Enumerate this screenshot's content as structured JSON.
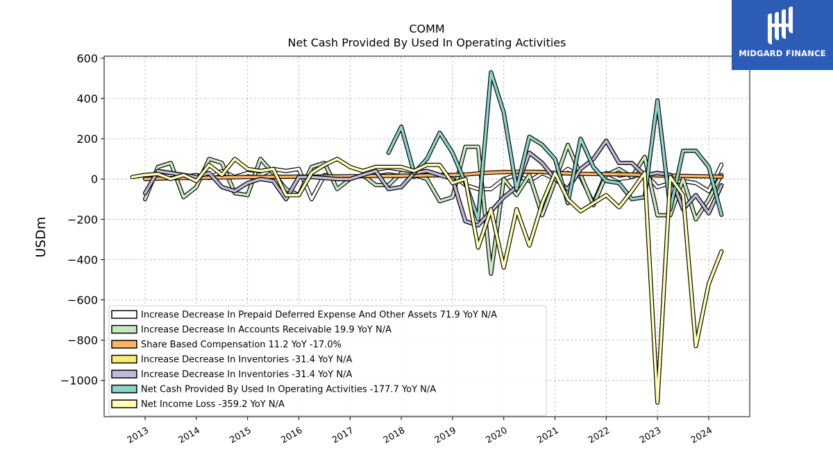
{
  "logo": {
    "text": "MIDGARD FINANCE",
    "bg_color": "#2c5cb6"
  },
  "chart_data": {
    "type": "line",
    "title": "COMM",
    "subtitle": "Net Cash Provided By Used In Operating Activities",
    "xlabel": "",
    "ylabel": "USDm",
    "ylim": [
      -1180,
      610
    ],
    "xlim": [
      2012.2,
      2024.8
    ],
    "yticks": [
      600,
      400,
      200,
      0,
      -200,
      -400,
      -600,
      -800,
      -1000
    ],
    "ytick_labels": [
      "600",
      "400",
      "200",
      "0",
      "−200",
      "−400",
      "−600",
      "−800",
      "−1000"
    ],
    "xticks": [
      2013,
      2014,
      2015,
      2016,
      2017,
      2018,
      2019,
      2020,
      2021,
      2022,
      2023,
      2024
    ],
    "xtick_labels": [
      "2013",
      "2014",
      "2015",
      "2016",
      "2017",
      "2018",
      "2019",
      "2020",
      "2021",
      "2022",
      "2023",
      "2024"
    ],
    "grid": true,
    "legend_position": "lower-left",
    "series": [
      {
        "name": "Increase Decrease In Prepaid Deferred Expense And Other Assets  71.9 YoY N/A",
        "color": "#ffffff",
        "x": [
          2013.0,
          2013.25,
          2013.5,
          2013.75,
          2014.0,
          2014.25,
          2014.5,
          2014.75,
          2015.0,
          2015.25,
          2015.5,
          2015.75,
          2016.0,
          2016.25,
          2016.5,
          2016.75,
          2017.0,
          2017.25,
          2017.5,
          2017.75,
          2018.0,
          2018.25,
          2018.5,
          2018.75,
          2019.0,
          2019.25,
          2019.5,
          2019.75,
          2020.0,
          2020.25,
          2020.5,
          2020.75,
          2021.0,
          2021.25,
          2021.5,
          2021.75,
          2022.0,
          2022.25,
          2022.5,
          2022.75,
          2023.0,
          2023.25,
          2023.5,
          2023.75,
          2024.0,
          2024.25
        ],
        "values": [
          10,
          30,
          20,
          10,
          20,
          5,
          40,
          10,
          30,
          20,
          50,
          40,
          50,
          -100,
          20,
          10,
          0,
          20,
          30,
          40,
          30,
          10,
          40,
          20,
          20,
          -30,
          -50,
          -50,
          0,
          20,
          -10,
          30,
          0,
          50,
          10,
          -120,
          30,
          0,
          10,
          30,
          -40,
          -20,
          -10,
          -20,
          -60,
          72
        ]
      },
      {
        "name": "Increase Decrease In Accounts Receivable  19.9 YoY N/A",
        "color": "#c7e9c0",
        "x": [
          2013.0,
          2013.25,
          2013.5,
          2013.75,
          2014.0,
          2014.25,
          2014.5,
          2014.75,
          2015.0,
          2015.25,
          2015.5,
          2015.75,
          2016.0,
          2016.25,
          2016.5,
          2016.75,
          2017.0,
          2017.25,
          2017.5,
          2017.75,
          2018.0,
          2018.25,
          2018.5,
          2018.75,
          2019.0,
          2019.25,
          2019.5,
          2019.75,
          2020.0,
          2020.25,
          2020.5,
          2020.75,
          2021.0,
          2021.25,
          2021.5,
          2021.75,
          2022.0,
          2022.25,
          2022.5,
          2022.75,
          2023.0,
          2023.25,
          2023.5,
          2023.75,
          2024.0,
          2024.25
        ],
        "values": [
          -100,
          60,
          80,
          -90,
          -40,
          100,
          80,
          -70,
          -80,
          100,
          30,
          -50,
          -80,
          60,
          80,
          -50,
          0,
          20,
          -30,
          -30,
          30,
          20,
          0,
          -110,
          -90,
          160,
          160,
          -470,
          0,
          -80,
          20,
          -180,
          -10,
          170,
          20,
          -130,
          20,
          50,
          10,
          110,
          -180,
          -180,
          0,
          -200,
          -100,
          20
        ]
      },
      {
        "name": "Share Based Compensation  11.2 YoY -17.0%",
        "color": "#fdb462",
        "x": [
          2013.0,
          2013.25,
          2013.5,
          2013.75,
          2014.0,
          2014.25,
          2014.5,
          2014.75,
          2015.0,
          2015.25,
          2015.5,
          2015.75,
          2016.0,
          2016.25,
          2016.5,
          2016.75,
          2017.0,
          2017.25,
          2017.5,
          2017.75,
          2018.0,
          2018.25,
          2018.5,
          2018.75,
          2019.0,
          2019.25,
          2019.5,
          2019.75,
          2020.0,
          2020.25,
          2020.5,
          2020.75,
          2021.0,
          2021.25,
          2021.5,
          2021.75,
          2022.0,
          2022.25,
          2022.5,
          2022.75,
          2023.0,
          2023.25,
          2023.5,
          2023.75,
          2024.0,
          2024.25
        ],
        "values": [
          0,
          2,
          4,
          5,
          6,
          7,
          8,
          9,
          10,
          10,
          11,
          11,
          12,
          12,
          13,
          13,
          14,
          14,
          15,
          15,
          16,
          17,
          18,
          19,
          20,
          22,
          28,
          32,
          34,
          36,
          36,
          35,
          30,
          28,
          26,
          25,
          24,
          23,
          22,
          20,
          18,
          17,
          15,
          14,
          13,
          11
        ]
      },
      {
        "name": "Increase Decrease In Inventories  -31.4 YoY N/A",
        "color": "#ffed6f",
        "x": [
          2013.0,
          2013.25,
          2013.5,
          2013.75,
          2014.0,
          2014.25,
          2014.5,
          2014.75,
          2015.0,
          2015.25,
          2015.5,
          2015.75,
          2016.0,
          2016.25,
          2016.5,
          2016.75,
          2017.0,
          2017.25,
          2017.5,
          2017.75,
          2018.0,
          2018.25,
          2018.5,
          2018.75,
          2019.0,
          2019.25,
          2019.5,
          2019.75,
          2020.0,
          2020.25,
          2020.5,
          2020.75,
          2021.0,
          2021.25,
          2021.5,
          2021.75,
          2022.0,
          2022.25,
          2022.5,
          2022.75,
          2023.0,
          2023.25,
          2023.5,
          2023.75,
          2024.0,
          2024.25
        ],
        "values": [
          -70,
          40,
          30,
          20,
          10,
          30,
          -40,
          -60,
          -20,
          0,
          -10,
          -100,
          10,
          10,
          5,
          0,
          0,
          20,
          40,
          -50,
          -40,
          30,
          40,
          20,
          0,
          -210,
          -230,
          -160,
          -90,
          -40,
          130,
          80,
          0,
          -50,
          50,
          100,
          190,
          80,
          80,
          20,
          30,
          20,
          -150,
          -80,
          -170,
          -31
        ]
      },
      {
        "name": "Increase Decrease In Inventories  -31.4 YoY N/A",
        "color": "#bebada",
        "x": [
          2013.0,
          2013.25,
          2013.5,
          2013.75,
          2014.0,
          2014.25,
          2014.5,
          2014.75,
          2015.0,
          2015.25,
          2015.5,
          2015.75,
          2016.0,
          2016.25,
          2016.5,
          2016.75,
          2017.0,
          2017.25,
          2017.5,
          2017.75,
          2018.0,
          2018.25,
          2018.5,
          2018.75,
          2019.0,
          2019.25,
          2019.5,
          2019.75,
          2020.0,
          2020.25,
          2020.5,
          2020.75,
          2021.0,
          2021.25,
          2021.5,
          2021.75,
          2022.0,
          2022.25,
          2022.5,
          2022.75,
          2023.0,
          2023.25,
          2023.5,
          2023.75,
          2024.0,
          2024.25
        ],
        "values": [
          -70,
          40,
          30,
          20,
          10,
          30,
          -40,
          -60,
          -20,
          0,
          -10,
          -100,
          10,
          10,
          5,
          0,
          0,
          20,
          40,
          -50,
          -40,
          30,
          40,
          20,
          0,
          -210,
          -230,
          -160,
          -90,
          -40,
          130,
          80,
          0,
          -50,
          50,
          100,
          190,
          80,
          80,
          20,
          30,
          20,
          -150,
          -80,
          -170,
          -31
        ]
      },
      {
        "name": "Net Cash Provided By Used In Operating Activities  -177.7 YoY N/A",
        "color": "#8dd3c7",
        "x": [
          2017.75,
          2018.0,
          2018.25,
          2018.5,
          2018.75,
          2019.0,
          2019.25,
          2019.5,
          2019.75,
          2020.0,
          2020.25,
          2020.5,
          2020.75,
          2021.0,
          2021.25,
          2021.5,
          2021.75,
          2022.0,
          2022.25,
          2022.5,
          2022.75,
          2023.0,
          2023.25,
          2023.5,
          2023.75,
          2024.0,
          2024.25
        ],
        "values": [
          130,
          260,
          30,
          100,
          230,
          130,
          -20,
          -200,
          530,
          330,
          -50,
          210,
          170,
          100,
          -120,
          200,
          60,
          -10,
          -20,
          -100,
          -90,
          390,
          -150,
          140,
          140,
          60,
          -178
        ]
      },
      {
        "name": "Net Income Loss  -359.2 YoY N/A",
        "color": "#ffffb3",
        "x": [
          2012.75,
          2013.0,
          2013.25,
          2013.5,
          2013.75,
          2014.0,
          2014.25,
          2014.5,
          2014.75,
          2015.0,
          2015.25,
          2015.5,
          2015.75,
          2016.0,
          2016.25,
          2016.5,
          2016.75,
          2017.0,
          2017.25,
          2017.5,
          2017.75,
          2018.0,
          2018.25,
          2018.5,
          2018.75,
          2019.0,
          2019.25,
          2019.5,
          2019.75,
          2020.0,
          2020.25,
          2020.5,
          2020.75,
          2021.0,
          2021.25,
          2021.5,
          2021.75,
          2022.0,
          2022.25,
          2022.5,
          2022.75,
          2023.0,
          2023.25,
          2023.5,
          2023.75,
          2024.0,
          2024.25
        ],
        "values": [
          10,
          20,
          25,
          0,
          20,
          -10,
          70,
          20,
          100,
          50,
          40,
          50,
          -80,
          -80,
          30,
          70,
          100,
          60,
          40,
          60,
          60,
          60,
          40,
          70,
          70,
          -20,
          0,
          -340,
          -150,
          -440,
          -150,
          -330,
          -120,
          30,
          -100,
          -160,
          -120,
          -80,
          -140,
          -60,
          30,
          -1110,
          10,
          -80,
          -830,
          -520,
          -359
        ]
      }
    ]
  }
}
